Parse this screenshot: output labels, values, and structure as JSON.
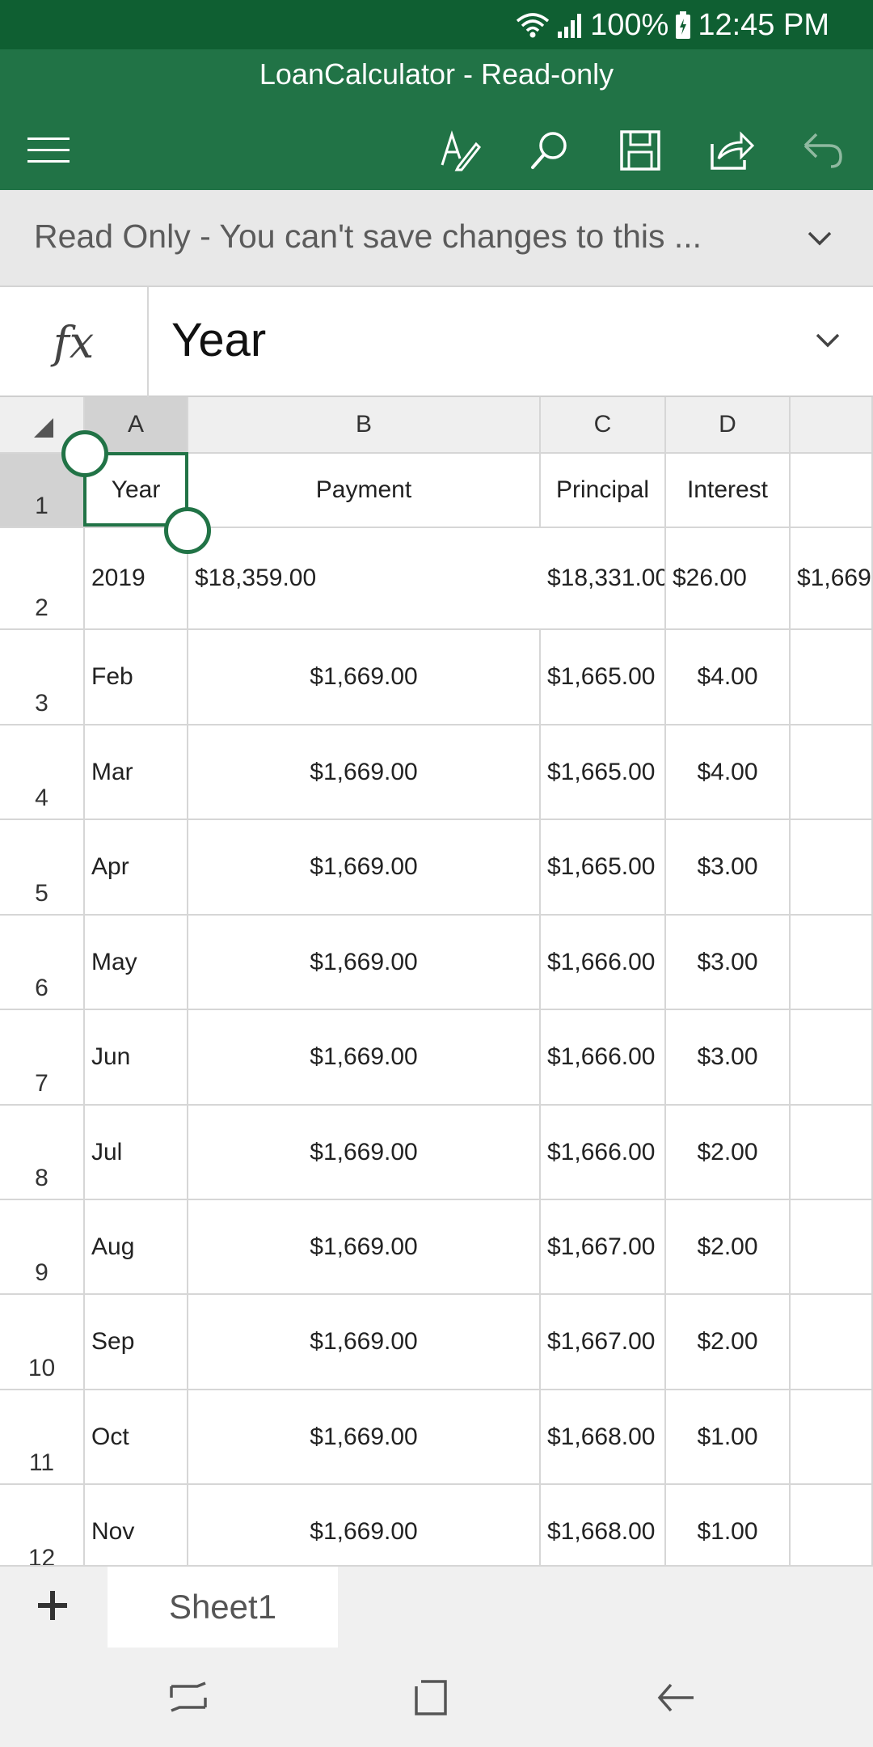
{
  "status_bar": {
    "battery": "100%",
    "time": "12:45 PM"
  },
  "app_bar": {
    "title": "LoanCalculator - Read-only"
  },
  "banner": {
    "text": "Read Only - You can't save changes to this ..."
  },
  "formula_bar": {
    "fx_label": "fx",
    "value": "Year"
  },
  "grid": {
    "columns": [
      "A",
      "B",
      "C",
      "D"
    ],
    "rows": [
      {
        "num": "1",
        "a": "Year",
        "b": "Payment",
        "c": "Principal",
        "d": "Interest",
        "e": ""
      },
      {
        "num": "2",
        "a": "2019",
        "b": "$18,359.00",
        "c": "$18,331.00",
        "d": "$26.00",
        "e": "$1,669"
      },
      {
        "num": "3",
        "a": "Feb",
        "b": "$1,669.00",
        "c": "$1,665.00",
        "d": "$4.00",
        "e": ""
      },
      {
        "num": "4",
        "a": "Mar",
        "b": "$1,669.00",
        "c": "$1,665.00",
        "d": "$4.00",
        "e": ""
      },
      {
        "num": "5",
        "a": "Apr",
        "b": "$1,669.00",
        "c": "$1,665.00",
        "d": "$3.00",
        "e": ""
      },
      {
        "num": "6",
        "a": "May",
        "b": "$1,669.00",
        "c": "$1,666.00",
        "d": "$3.00",
        "e": ""
      },
      {
        "num": "7",
        "a": "Jun",
        "b": "$1,669.00",
        "c": "$1,666.00",
        "d": "$3.00",
        "e": ""
      },
      {
        "num": "8",
        "a": "Jul",
        "b": "$1,669.00",
        "c": "$1,666.00",
        "d": "$2.00",
        "e": ""
      },
      {
        "num": "9",
        "a": "Aug",
        "b": "$1,669.00",
        "c": "$1,667.00",
        "d": "$2.00",
        "e": ""
      },
      {
        "num": "10",
        "a": "Sep",
        "b": "$1,669.00",
        "c": "$1,667.00",
        "d": "$2.00",
        "e": ""
      },
      {
        "num": "11",
        "a": "Oct",
        "b": "$1,669.00",
        "c": "$1,668.00",
        "d": "$1.00",
        "e": ""
      },
      {
        "num": "12",
        "a": "Nov",
        "b": "$1,669.00",
        "c": "$1,668.00",
        "d": "$1.00",
        "e": ""
      }
    ]
  },
  "sheets": {
    "tabs": [
      "Sheet1"
    ]
  },
  "icons": {
    "menu": "hamburger-menu-icon",
    "edit": "pen-edit-icon",
    "search": "search-icon",
    "save": "save-icon",
    "share": "share-icon",
    "undo": "undo-icon"
  },
  "colors": {
    "app_bar": "#217346",
    "status_bar": "#0f5f32",
    "selection": "#217346"
  }
}
